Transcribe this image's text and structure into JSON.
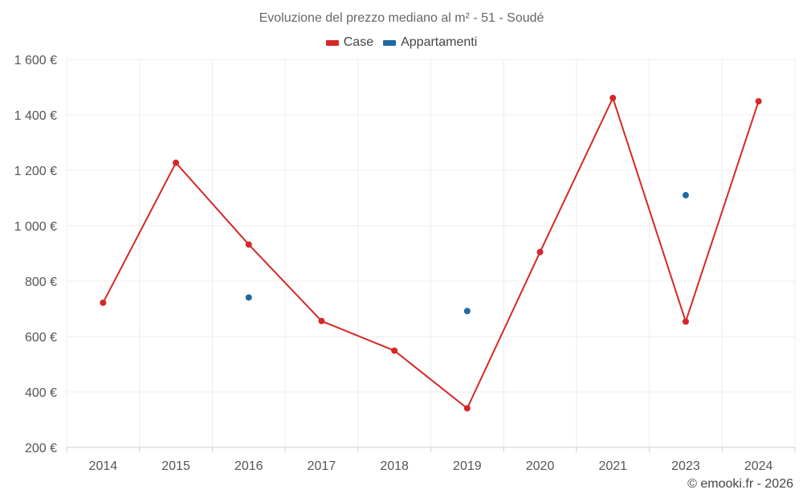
{
  "chart_data": {
    "type": "line",
    "title": "Evoluzione del prezzo mediano al m² - 51 - Soudé",
    "categories": [
      "2014",
      "2015",
      "2016",
      "2017",
      "2018",
      "2019",
      "2020",
      "2021",
      "2023",
      "2024"
    ],
    "series": [
      {
        "name": "Case",
        "color": "#d62728",
        "style": "line",
        "values": [
          722,
          1227,
          932,
          656,
          549,
          341,
          905,
          1461,
          654,
          1449
        ]
      },
      {
        "name": "Appartamenti",
        "color": "#1f6aa5",
        "style": "points",
        "values": [
          null,
          null,
          741,
          null,
          null,
          692,
          null,
          null,
          1110,
          null
        ]
      }
    ],
    "ylim": [
      200,
      1600
    ],
    "yticks": [
      200,
      400,
      600,
      800,
      1000,
      1200,
      1400,
      1600
    ],
    "ytick_labels": [
      "200 €",
      "400 €",
      "600 €",
      "800 €",
      "1 000 €",
      "1 200 €",
      "1 400 €",
      "1 600 €"
    ],
    "grid": true,
    "legend_position": "top-center"
  },
  "legend": {
    "case_label": "Case",
    "appartamenti_label": "Appartamenti"
  },
  "credit": "© emooki.fr - 2026"
}
